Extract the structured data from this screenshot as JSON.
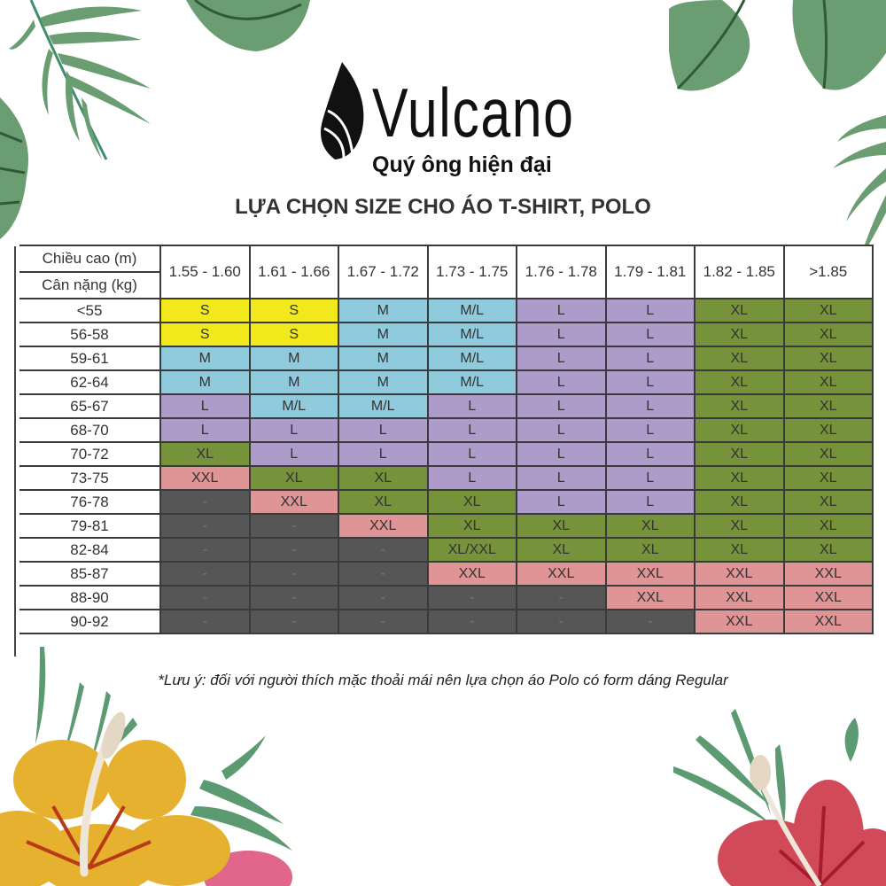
{
  "brand": {
    "name": "Vulcano",
    "tagline": "Quý ông hiện đại",
    "logo_icon": "flame-icon"
  },
  "title": "LỰA CHỌN SIZE CHO ÁO T-SHIRT, POLO",
  "table": {
    "corner_top": "Chiều cao (m)",
    "corner_bottom": "Cân nặng (kg)",
    "columns": [
      "1.55 - 1.60",
      "1.61 - 1.66",
      "1.67 - 1.72",
      "1.73 - 1.75",
      "1.76 - 1.78",
      "1.79 - 1.81",
      "1.82 - 1.85",
      ">1.85"
    ],
    "rows": [
      {
        "weight": "<55",
        "sizes": [
          "S",
          "S",
          "M",
          "M/L",
          "L",
          "L",
          "XL",
          "XL"
        ]
      },
      {
        "weight": "56-58",
        "sizes": [
          "S",
          "S",
          "M",
          "M/L",
          "L",
          "L",
          "XL",
          "XL"
        ]
      },
      {
        "weight": "59-61",
        "sizes": [
          "M",
          "M",
          "M",
          "M/L",
          "L",
          "L",
          "XL",
          "XL"
        ]
      },
      {
        "weight": "62-64",
        "sizes": [
          "M",
          "M",
          "M",
          "M/L",
          "L",
          "L",
          "XL",
          "XL"
        ]
      },
      {
        "weight": "65-67",
        "sizes": [
          "L",
          "M/L",
          "M/L",
          "L",
          "L",
          "L",
          "XL",
          "XL"
        ]
      },
      {
        "weight": "68-70",
        "sizes": [
          "L",
          "L",
          "L",
          "L",
          "L",
          "L",
          "XL",
          "XL"
        ]
      },
      {
        "weight": "70-72",
        "sizes": [
          "XL",
          "L",
          "L",
          "L",
          "L",
          "L",
          "XL",
          "XL"
        ]
      },
      {
        "weight": "73-75",
        "sizes": [
          "XXL",
          "XL",
          "XL",
          "L",
          "L",
          "L",
          "XL",
          "XL"
        ]
      },
      {
        "weight": "76-78",
        "sizes": [
          "-",
          "XXL",
          "XL",
          "XL",
          "L",
          "L",
          "XL",
          "XL"
        ]
      },
      {
        "weight": "79-81",
        "sizes": [
          "-",
          "-",
          "XXL",
          "XL",
          "XL",
          "XL",
          "XL",
          "XL"
        ]
      },
      {
        "weight": "82-84",
        "sizes": [
          "-",
          "-",
          "-",
          "XL/XXL",
          "XL",
          "XL",
          "XL",
          "XL"
        ]
      },
      {
        "weight": "85-87",
        "sizes": [
          "-",
          "-",
          "-",
          "XXL",
          "XXL",
          "XXL",
          "XXL",
          "XXL"
        ]
      },
      {
        "weight": "88-90",
        "sizes": [
          "-",
          "-",
          "-",
          "-",
          "-",
          "XXL",
          "XXL",
          "XXL"
        ]
      },
      {
        "weight": "90-92",
        "sizes": [
          "-",
          "-",
          "-",
          "-",
          "-",
          "-",
          "XXL",
          "XXL"
        ]
      }
    ]
  },
  "size_colors": {
    "S": "#f2e91c",
    "M": "#8fcbdc",
    "M/L": "#8fcbdc",
    "L": "#ad9cc9",
    "XL": "#76923a",
    "XL/XXL": "#76923a",
    "XXL": "#df9495",
    "-": "#565656"
  },
  "note": "*Lưu ý: đối với người thích mặc thoải mái nên lựa chọn áo Polo có form dáng Regular",
  "decorations": [
    "palm-leaf-icon",
    "monstera-leaf-icon",
    "hibiscus-flower-icon"
  ]
}
